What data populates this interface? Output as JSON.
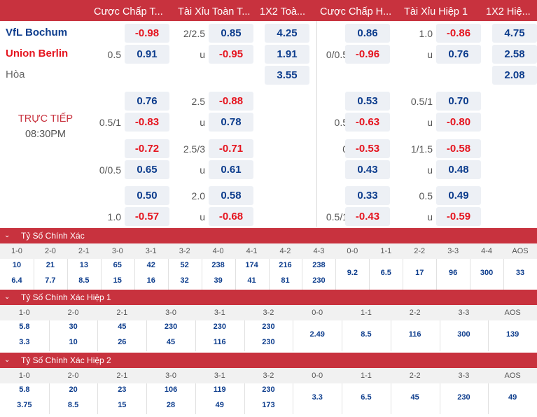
{
  "header": [
    "Cược Chấp T...",
    "Tài Xỉu Toàn T...",
    "1X2 Toà...",
    "Cược Chấp H...",
    "Tài Xỉu Hiệp 1",
    "1X2 Hiệ..."
  ],
  "teams": {
    "home": "VfL Bochum",
    "away": "Union Berlin",
    "draw": "Hòa"
  },
  "colors": {
    "home": "#0d3d8d",
    "away": "#e5151f",
    "header": "#c8323e"
  },
  "live": {
    "status": "TRỰC TIẾP",
    "time": "08:30PM"
  },
  "odds": [
    [
      "",
      "-0.98",
      "2/2.5",
      "0.85",
      "4.25",
      "",
      "0.86",
      "1.0",
      "-0.86",
      "4.75"
    ],
    [
      "0.5",
      "0.91",
      "u",
      "-0.95",
      "1.91",
      "0/0.5",
      "-0.96",
      "u",
      "0.76",
      "2.58"
    ],
    [
      "",
      "",
      "",
      "",
      "3.55",
      "",
      "",
      "",
      "",
      "2.08"
    ],
    [
      "",
      "0.76",
      "2.5",
      "-0.88",
      "",
      "",
      "0.53",
      "0.5/1",
      "0.70",
      ""
    ],
    [
      "0.5/1",
      "-0.83",
      "u",
      "0.78",
      "",
      "0.5",
      "-0.63",
      "u",
      "-0.80",
      ""
    ],
    [
      "",
      "-0.72",
      "2.5/3",
      "-0.71",
      "",
      "0",
      "-0.53",
      "1/1.5",
      "-0.58",
      ""
    ],
    [
      "0/0.5",
      "0.65",
      "u",
      "0.61",
      "",
      "",
      "0.43",
      "u",
      "0.48",
      ""
    ],
    [
      "",
      "0.50",
      "2.0",
      "0.58",
      "",
      "",
      "0.33",
      "0.5",
      "0.49",
      ""
    ],
    [
      "1.0",
      "-0.57",
      "u",
      "-0.68",
      "",
      "0.5/1",
      "-0.43",
      "u",
      "-0.59",
      ""
    ]
  ],
  "sections": [
    {
      "title": "Tỷ Số Chính Xác",
      "cols": [
        {
          "h": "1-0",
          "v": [
            "10",
            "6.4"
          ]
        },
        {
          "h": "2-0",
          "v": [
            "21",
            "7.7"
          ]
        },
        {
          "h": "2-1",
          "v": [
            "13",
            "8.5"
          ]
        },
        {
          "h": "3-0",
          "v": [
            "65",
            "15"
          ]
        },
        {
          "h": "3-1",
          "v": [
            "42",
            "16"
          ]
        },
        {
          "h": "3-2",
          "v": [
            "52",
            "32"
          ]
        },
        {
          "h": "4-0",
          "v": [
            "238",
            "39"
          ]
        },
        {
          "h": "4-1",
          "v": [
            "174",
            "41"
          ]
        },
        {
          "h": "4-2",
          "v": [
            "216",
            "81"
          ]
        },
        {
          "h": "4-3",
          "v": [
            "238",
            "230"
          ]
        },
        {
          "h": "0-0",
          "v": [
            "9.2"
          ]
        },
        {
          "h": "1-1",
          "v": [
            "6.5"
          ]
        },
        {
          "h": "2-2",
          "v": [
            "17"
          ]
        },
        {
          "h": "3-3",
          "v": [
            "96"
          ]
        },
        {
          "h": "4-4",
          "v": [
            "300"
          ]
        },
        {
          "h": "AOS",
          "v": [
            "33"
          ]
        }
      ]
    },
    {
      "title": "Tỷ Số Chính Xác Hiệp 1",
      "cols": [
        {
          "h": "1-0",
          "v": [
            "5.8",
            "3.3"
          ]
        },
        {
          "h": "2-0",
          "v": [
            "30",
            "10"
          ]
        },
        {
          "h": "2-1",
          "v": [
            "45",
            "26"
          ]
        },
        {
          "h": "3-0",
          "v": [
            "230",
            "45"
          ]
        },
        {
          "h": "3-1",
          "v": [
            "230",
            "116"
          ]
        },
        {
          "h": "3-2",
          "v": [
            "230",
            "230"
          ]
        },
        {
          "h": "0-0",
          "v": [
            "2.49"
          ]
        },
        {
          "h": "1-1",
          "v": [
            "8.5"
          ]
        },
        {
          "h": "2-2",
          "v": [
            "116"
          ]
        },
        {
          "h": "3-3",
          "v": [
            "300"
          ]
        },
        {
          "h": "AOS",
          "v": [
            "139"
          ]
        }
      ]
    },
    {
      "title": "Tỷ Số Chính Xác Hiệp 2",
      "cols": [
        {
          "h": "1-0",
          "v": [
            "5.8",
            "3.75"
          ]
        },
        {
          "h": "2-0",
          "v": [
            "20",
            "8.5"
          ]
        },
        {
          "h": "2-1",
          "v": [
            "23",
            "15"
          ]
        },
        {
          "h": "3-0",
          "v": [
            "106",
            "28"
          ]
        },
        {
          "h": "3-1",
          "v": [
            "119",
            "49"
          ]
        },
        {
          "h": "3-2",
          "v": [
            "230",
            "173"
          ]
        },
        {
          "h": "0-0",
          "v": [
            "3.3"
          ]
        },
        {
          "h": "1-1",
          "v": [
            "6.5"
          ]
        },
        {
          "h": "2-2",
          "v": [
            "45"
          ]
        },
        {
          "h": "3-3",
          "v": [
            "230"
          ]
        },
        {
          "h": "AOS",
          "v": [
            "49"
          ]
        }
      ]
    }
  ]
}
